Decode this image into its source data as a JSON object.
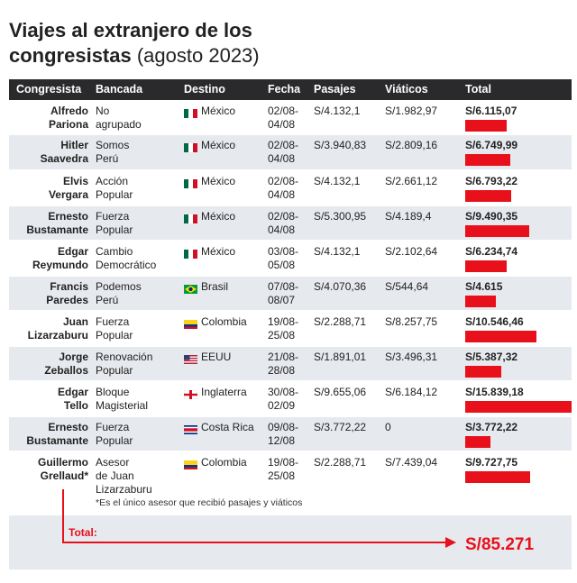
{
  "title": "Viajes al extranjero de los congresistas",
  "subtitle": "(agosto 2023)",
  "headers": [
    "Congresista",
    "Bancada",
    "Destino",
    "Fecha",
    "Pasajes",
    "Viáticos",
    "Total"
  ],
  "rows": [
    {
      "congresista": [
        "Alfredo",
        "Pariona"
      ],
      "bancada": [
        "No",
        "agrupado"
      ],
      "destino": "México",
      "fecha": [
        "02/08-",
        "04/08"
      ],
      "pasajes": "S/4.132,1",
      "viaticos": "S/1.982,97",
      "total": {
        "value": 6115.07,
        "label": "S/6.115,07"
      }
    },
    {
      "congresista": [
        "Hitler",
        "Saavedra"
      ],
      "bancada": [
        "Somos",
        "Perú"
      ],
      "destino": "México",
      "fecha": [
        "02/08-",
        "04/08"
      ],
      "pasajes": "S/3.940,83",
      "viaticos": "S/2.809,16",
      "total": {
        "value": 6749.99,
        "label": "S/6.749,99"
      }
    },
    {
      "congresista": [
        "Elvis",
        "Vergara"
      ],
      "bancada": [
        "Acción",
        "Popular"
      ],
      "destino": "México",
      "fecha": [
        "02/08-",
        "04/08"
      ],
      "pasajes": "S/4.132,1",
      "viaticos": "S/2.661,12",
      "total": {
        "value": 6793.22,
        "label": "S/6.793,22"
      }
    },
    {
      "congresista": [
        "Ernesto",
        "Bustamante"
      ],
      "bancada": [
        "Fuerza",
        "Popular"
      ],
      "destino": "México",
      "fecha": [
        "02/08-",
        "04/08"
      ],
      "pasajes": "S/5.300,95",
      "viaticos": "S/4.189,4",
      "total": {
        "value": 9490.35,
        "label": "S/9.490,35"
      }
    },
    {
      "congresista": [
        "Edgar",
        "Reymundo"
      ],
      "bancada": [
        "Cambio",
        "Democrático"
      ],
      "destino": "México",
      "fecha": [
        "03/08-",
        "05/08"
      ],
      "pasajes": "S/4.132,1",
      "viaticos": "S/2.102,64",
      "total": {
        "value": 6234.74,
        "label": "S/6.234,74"
      }
    },
    {
      "congresista": [
        "Francis",
        "Paredes"
      ],
      "bancada": [
        "Podemos",
        "Perú"
      ],
      "destino": "Brasil",
      "fecha": [
        "07/08-",
        "08/07"
      ],
      "pasajes": "S/4.070,36",
      "viaticos": "S/544,64",
      "total": {
        "value": 4615,
        "label": "S/4.615"
      }
    },
    {
      "congresista": [
        "Juan",
        "Lizarzaburu"
      ],
      "bancada": [
        "Fuerza",
        "Popular"
      ],
      "destino": "Colombia",
      "fecha": [
        "19/08-",
        "25/08"
      ],
      "pasajes": "S/2.288,71",
      "viaticos": "S/8.257,75",
      "total": {
        "value": 10546.46,
        "label": "S/10.546,46"
      }
    },
    {
      "congresista": [
        "Jorge",
        "Zeballos"
      ],
      "bancada": [
        "Renovación",
        "Popular"
      ],
      "destino": "EEUU",
      "fecha": [
        "21/08-",
        "28/08"
      ],
      "pasajes": "S/1.891,01",
      "viaticos": "S/3.496,31",
      "total": {
        "value": 5387.32,
        "label": "S/5.387,32"
      }
    },
    {
      "congresista": [
        "Edgar",
        "Tello"
      ],
      "bancada": [
        "Bloque",
        "Magisterial"
      ],
      "destino": "Inglaterra",
      "fecha": [
        "30/08-",
        "02/09"
      ],
      "pasajes": "S/9.655,06",
      "viaticos": "S/6.184,12",
      "total": {
        "value": 15839.18,
        "label": "S/15.839,18"
      }
    },
    {
      "congresista": [
        "Ernesto",
        "Bustamante"
      ],
      "bancada": [
        "Fuerza",
        "Popular"
      ],
      "destino": "Costa Rica",
      "fecha": [
        "09/08-",
        "12/08"
      ],
      "pasajes": "S/3.772,22",
      "viaticos": "0",
      "total": {
        "value": 3772.22,
        "label": "S/3.772,22"
      }
    },
    {
      "congresista": [
        "Guillermo",
        "Grellaud*"
      ],
      "bancada": [
        "Asesor",
        "de Juan",
        "Lizarzaburu"
      ],
      "destino": "Colombia",
      "fecha": [
        "19/08-",
        "25/08"
      ],
      "pasajes": "S/2.288,71",
      "viaticos": "S/7.439,04",
      "total": {
        "value": 9727.75,
        "label": "S/9.727,75"
      }
    }
  ],
  "note": "*Es el único asesor que recibió pasajes y viáticos",
  "total_label": "Total:",
  "grand_total": "S/85.271"
}
